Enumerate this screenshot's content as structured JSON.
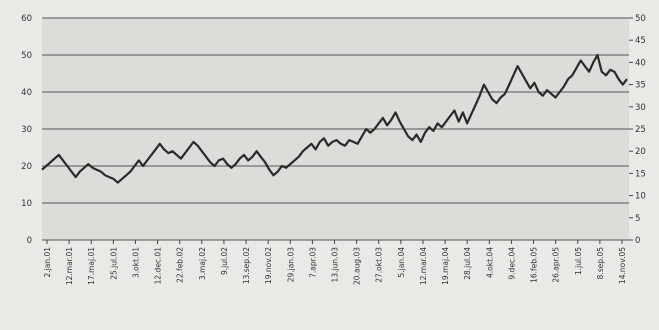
{
  "chart_data": {
    "type": "line",
    "title": "",
    "xlabel": "",
    "ylabel": "",
    "ylim": [
      0,
      60
    ],
    "yticks_left": [
      "0",
      "10",
      "20",
      "30",
      "40",
      "50",
      "60"
    ],
    "y2lim": [
      0,
      50
    ],
    "yticks_right": [
      "0",
      "5",
      "10",
      "15",
      "20",
      "25",
      "30",
      "35",
      "40",
      "45",
      "50"
    ],
    "grid": true,
    "legend": "none",
    "line_color": "#2a2a2a",
    "x_tick_labels": [
      "2.jan.01",
      "12.mar.01",
      "17.maj.01",
      "25.jul.01",
      "3.okt.01",
      "12.dec.01",
      "22.feb.02",
      "3.maj.02",
      "9.jul.02",
      "13.sep.02",
      "19.nov.02",
      "29.jan.03",
      "7.apr.03",
      "13.jun.03",
      "20.aug.03",
      "27.okt.03",
      "5.jan.04",
      "12.mar.04",
      "19.maj.04",
      "28.jul.04",
      "4.okt.04",
      "9.dec.04",
      "16.feb.05",
      "26.apr.05",
      "1.jul.05",
      "8.sep.05",
      "14.nov.05"
    ],
    "series": [
      {
        "values": [
          19,
          20,
          21,
          22,
          23,
          21.5,
          20,
          18.5,
          17,
          18.5,
          19.5,
          20.5,
          19.5,
          19,
          18.5,
          17.5,
          17,
          16.5,
          15.5,
          16.5,
          17.5,
          18.5,
          20,
          21.5,
          20,
          21.5,
          23,
          24.5,
          26,
          24.5,
          23.5,
          24,
          23,
          22,
          23.5,
          25,
          26.5,
          25.5,
          24,
          22.5,
          21,
          20,
          21.5,
          22,
          20.5,
          19.5,
          20.5,
          22,
          23,
          21.5,
          22.5,
          24,
          22.5,
          21,
          19,
          17.5,
          18.5,
          20,
          19.5,
          20.5,
          21.5,
          22.5,
          24,
          25,
          26,
          24.5,
          26.5,
          27.5,
          25.5,
          26.5,
          27,
          26,
          25.5,
          27,
          26.5,
          26,
          28,
          30,
          29,
          30,
          31.5,
          33,
          31,
          32.5,
          34.5,
          32,
          30,
          28,
          27,
          28.5,
          26.5,
          29,
          30.5,
          29.5,
          31.5,
          30.5,
          32,
          33.5,
          35,
          32,
          34.5,
          31.5,
          34,
          36.5,
          39,
          42,
          40,
          38,
          37,
          38.5,
          39.5,
          42,
          44.5,
          47,
          45,
          43,
          41,
          42.5,
          40,
          39,
          40.5,
          39.5,
          38.5,
          40,
          41.5,
          43.5,
          44.5,
          46.5,
          48.5,
          47,
          45.5,
          48,
          50,
          45.5,
          44.5,
          46,
          45.5,
          43.5,
          42,
          43.5
        ]
      }
    ]
  }
}
